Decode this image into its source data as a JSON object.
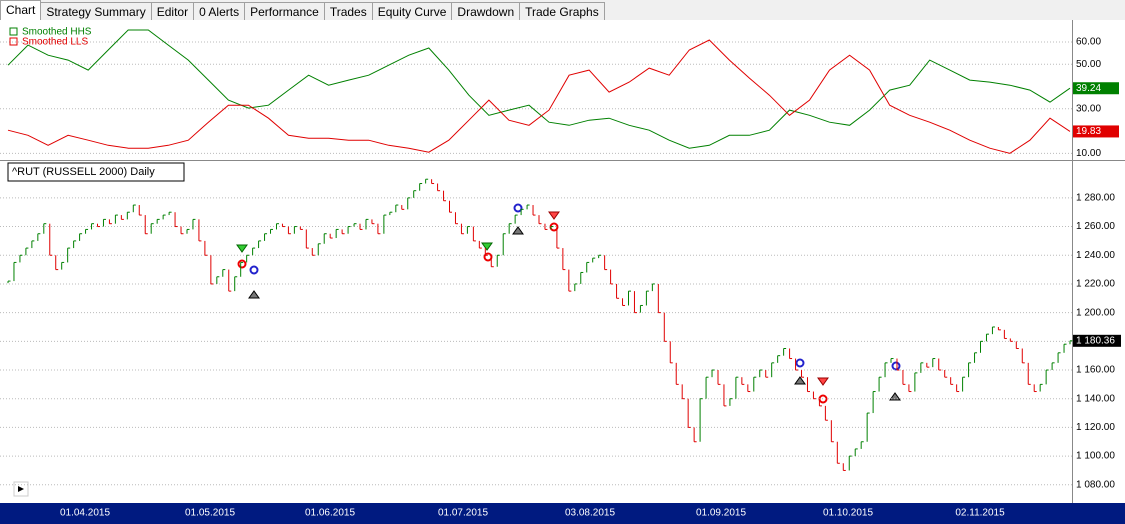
{
  "tabs": [
    "Chart",
    "Strategy Summary",
    "Editor",
    "0 Alerts",
    "Performance",
    "Trades",
    "Equity Curve",
    "Drawdown",
    "Trade Graphs"
  ],
  "chart_data": [
    {
      "type": "line",
      "series": [
        {
          "name": "Smoothed HHS",
          "color": "#008000",
          "values": [
            49.6,
            58.6,
            54.1,
            51.9,
            47.4,
            56.4,
            65.4,
            65.4,
            58.6,
            51.9,
            42.9,
            33.9,
            30.3,
            31.6,
            38.4,
            45.1,
            40.6,
            42.9,
            45.1,
            49.6,
            54.1,
            57.3,
            47.4,
            36.1,
            27.1,
            29.4,
            31.6,
            24.0,
            22.6,
            24.9,
            25.8,
            22.6,
            20.4,
            15.9,
            12.3,
            13.6,
            18.1,
            18.1,
            20.4,
            29.4,
            27.1,
            24.0,
            22.6,
            29.4,
            38.4,
            40.6,
            51.9,
            47.4,
            42.9,
            42.0,
            40.6,
            38.4,
            33.0,
            39.24
          ]
        },
        {
          "name": "Smoothed LLS",
          "color": "#e00000",
          "values": [
            20.4,
            18.1,
            13.6,
            18.1,
            15.9,
            13.6,
            12.3,
            12.3,
            13.6,
            15.9,
            24.0,
            31.6,
            31.6,
            25.8,
            18.1,
            16.8,
            16.8,
            15.9,
            15.9,
            13.6,
            12.3,
            10.5,
            15.9,
            24.9,
            33.9,
            24.9,
            22.6,
            29.4,
            45.1,
            47.4,
            37.5,
            42.0,
            48.3,
            45.1,
            56.4,
            60.9,
            51.9,
            43.8,
            36.1,
            27.1,
            33.9,
            47.4,
            54.1,
            47.4,
            31.6,
            27.1,
            24.0,
            20.4,
            15.9,
            12.3,
            10.0,
            15.9,
            25.8,
            19.83
          ]
        }
      ],
      "ylim": [
        7,
        69
      ],
      "yticks": [
        {
          "value": 60,
          "label": "60.00"
        },
        {
          "value": 50,
          "label": "50.00"
        },
        {
          "value": 30,
          "label": "30.00"
        },
        {
          "value": 10,
          "label": "10.00"
        }
      ],
      "grid": true
    },
    {
      "type": "price",
      "title": "^RUT (RUSSELL 2000) Daily",
      "up_color": "#008000",
      "down_color": "#e00000",
      "values": [
        1222,
        1235,
        1240,
        1245,
        1250,
        1255,
        1262,
        1240,
        1230,
        1235,
        1245,
        1250,
        1255,
        1258,
        1262,
        1260,
        1265,
        1262,
        1268,
        1265,
        1270,
        1275,
        1268,
        1255,
        1262,
        1265,
        1268,
        1270,
        1260,
        1255,
        1258,
        1265,
        1250,
        1240,
        1220,
        1225,
        1230,
        1215,
        1225,
        1235,
        1240,
        1245,
        1250,
        1255,
        1258,
        1262,
        1260,
        1255,
        1260,
        1258,
        1245,
        1240,
        1248,
        1255,
        1252,
        1258,
        1255,
        1260,
        1262,
        1258,
        1265,
        1262,
        1255,
        1268,
        1270,
        1275,
        1272,
        1280,
        1285,
        1290,
        1293,
        1290,
        1285,
        1278,
        1270,
        1262,
        1255,
        1260,
        1250,
        1245,
        1240,
        1232,
        1240,
        1255,
        1262,
        1268,
        1272,
        1275,
        1268,
        1262,
        1258,
        1260,
        1245,
        1230,
        1215,
        1220,
        1228,
        1235,
        1238,
        1240,
        1230,
        1220,
        1210,
        1205,
        1215,
        1200,
        1205,
        1215,
        1220,
        1200,
        1180,
        1165,
        1150,
        1140,
        1120,
        1110,
        1140,
        1155,
        1160,
        1150,
        1135,
        1140,
        1155,
        1150,
        1145,
        1155,
        1160,
        1155,
        1165,
        1170,
        1175,
        1168,
        1160,
        1155,
        1145,
        1140,
        1135,
        1125,
        1110,
        1095,
        1090,
        1100,
        1105,
        1110,
        1130,
        1145,
        1155,
        1165,
        1168,
        1160,
        1150,
        1145,
        1158,
        1165,
        1162,
        1168,
        1160,
        1155,
        1150,
        1145,
        1155,
        1165,
        1172,
        1180,
        1185,
        1190,
        1188,
        1182,
        1180,
        1175,
        1165,
        1150,
        1145,
        1150,
        1160,
        1165,
        1172,
        1178,
        1180.36
      ],
      "last_label": "1 180.36",
      "ylim": [
        1068,
        1305
      ],
      "yticks": [
        {
          "value": 1280,
          "label": "1 280.00"
        },
        {
          "value": 1260,
          "label": "1 260.00"
        },
        {
          "value": 1240,
          "label": "1 240.00"
        },
        {
          "value": 1220,
          "label": "1 220.00"
        },
        {
          "value": 1200,
          "label": "1 200.00"
        },
        {
          "value": 1180,
          "label": "1 180.00"
        },
        {
          "value": 1160,
          "label": "1 160.00"
        },
        {
          "value": 1140,
          "label": "1 140.00"
        },
        {
          "value": 1120,
          "label": "1 120.00"
        },
        {
          "value": 1100,
          "label": "1 100.00"
        },
        {
          "value": 1080,
          "label": "1 080.00"
        }
      ],
      "x_labels": [
        "01.04.2015",
        "01.05.2015",
        "01.06.2015",
        "01.07.2015",
        "03.08.2015",
        "01.09.2015",
        "01.10.2015",
        "02.11.2015"
      ],
      "grid": true
    }
  ]
}
